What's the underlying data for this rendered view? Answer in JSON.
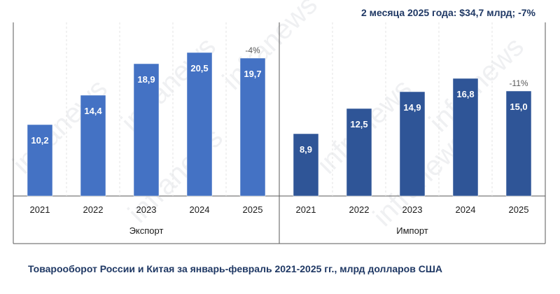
{
  "headline": "2 месяца 2025 года: $34,7 млрд; -7%",
  "caption": "Товарооборот  России и Китая за январь-февраль  2021-2025 гг., млрд долларов США",
  "watermark": "infranews",
  "colors": {
    "export": "#4472c4",
    "import": "#2f5597",
    "axis": "#595959",
    "text": "#1f3864"
  },
  "chart_data": {
    "type": "bar",
    "ylim": [
      0,
      24
    ],
    "grid": false,
    "groups": [
      {
        "name": "Экспорт",
        "categories": [
          "2021",
          "2022",
          "2023",
          "2024",
          "2025"
        ],
        "values": [
          10.2,
          14.4,
          18.9,
          20.5,
          19.7
        ],
        "value_labels": [
          "10,2",
          "14,4",
          "18,9",
          "20,5",
          "19,7"
        ],
        "change_label": "-4%"
      },
      {
        "name": "Импорт",
        "categories": [
          "2021",
          "2022",
          "2023",
          "2024",
          "2025"
        ],
        "values": [
          8.9,
          12.5,
          14.9,
          16.8,
          15.0
        ],
        "value_labels": [
          "8,9",
          "12,5",
          "14,9",
          "16,8",
          "15,0"
        ],
        "change_label": "-11%"
      }
    ]
  }
}
